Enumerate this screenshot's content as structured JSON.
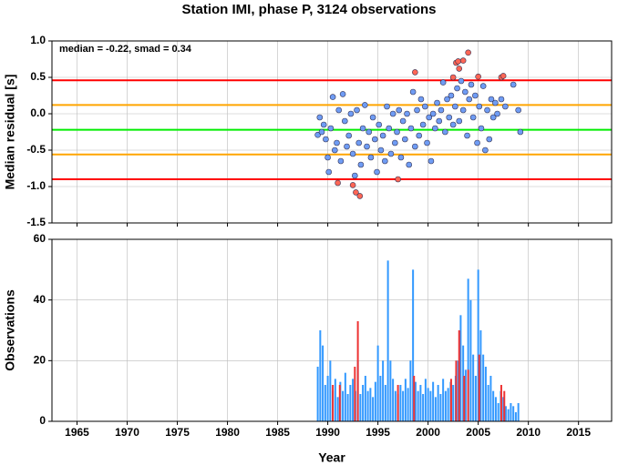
{
  "chart_data": [
    {
      "type": "scatter",
      "title": "Station IMI, phase P, 3124 observations",
      "annotation": "median = -0.22, smad = 0.34",
      "ylabel": "Median residual [s]",
      "xlim": [
        1962.5,
        2018.3
      ],
      "xticks": [
        1965,
        1970,
        1975,
        1980,
        1985,
        1990,
        1995,
        2000,
        2005,
        2010,
        2015
      ],
      "ylim": [
        -1.5,
        1.0
      ],
      "yticks": [
        {
          "value": 1.0,
          "label": "1.0"
        },
        0.5,
        {
          "value": 0.0,
          "label": "0.0"
        },
        -0.5,
        {
          "value": -1.0,
          "label": "-1.0"
        },
        -1.5
      ],
      "grid": true,
      "hlines": [
        {
          "value": 0.46,
          "color": "#ff0000"
        },
        {
          "value": 0.12,
          "color": "#ffa500"
        },
        {
          "value": -0.22,
          "color": "#00ee00"
        },
        {
          "value": -0.56,
          "color": "#ffa500"
        },
        {
          "value": -0.9,
          "color": "#ff0000"
        }
      ],
      "series": [
        {
          "color": "#6f9cf4",
          "x": [
            1989.0,
            1989.2,
            1989.4,
            1989.6,
            1989.8,
            1990.0,
            1990.1,
            1990.3,
            1990.5,
            1990.7,
            1990.9,
            1991.1,
            1991.3,
            1991.5,
            1991.7,
            1991.9,
            1992.1,
            1992.3,
            1992.5,
            1992.7,
            1992.9,
            1993.1,
            1993.3,
            1993.5,
            1993.7,
            1993.9,
            1994.1,
            1994.3,
            1994.5,
            1994.7,
            1994.9,
            1995.1,
            1995.3,
            1995.5,
            1995.7,
            1995.9,
            1996.1,
            1996.3,
            1996.5,
            1996.7,
            1996.9,
            1997.1,
            1997.3,
            1997.5,
            1997.7,
            1997.9,
            1998.1,
            1998.3,
            1998.5,
            1998.7,
            1998.9,
            1999.1,
            1999.3,
            1999.5,
            1999.7,
            1999.9,
            2000.1,
            2000.3,
            2000.5,
            2000.7,
            2000.9,
            2001.1,
            2001.3,
            2001.5,
            2001.7,
            2001.9,
            2002.1,
            2002.3,
            2002.5,
            2002.7,
            2002.9,
            2003.1,
            2003.3,
            2003.5,
            2003.7,
            2003.9,
            2004.1,
            2004.3,
            2004.5,
            2004.7,
            2004.9,
            2005.1,
            2005.3,
            2005.5,
            2005.7,
            2005.9,
            2006.1,
            2006.3,
            2006.5,
            2006.7,
            2006.9,
            2007.3,
            2007.7,
            2008.5,
            2009.0,
            2009.2
          ],
          "values": [
            -0.29,
            -0.05,
            -0.25,
            -0.15,
            -0.35,
            -0.6,
            -0.8,
            -0.2,
            0.23,
            -0.5,
            -0.4,
            0.05,
            -0.65,
            0.27,
            -0.1,
            -0.45,
            -0.3,
            0.0,
            -0.55,
            -0.85,
            0.05,
            -0.4,
            -0.7,
            -0.2,
            0.12,
            -0.45,
            -0.25,
            -0.6,
            -0.05,
            -0.35,
            -0.8,
            -0.15,
            -0.5,
            -0.3,
            -0.65,
            0.1,
            -0.2,
            -0.55,
            0.0,
            -0.4,
            -0.25,
            0.05,
            -0.6,
            -0.1,
            -0.35,
            0.0,
            -0.7,
            -0.2,
            0.3,
            -0.45,
            0.05,
            -0.3,
            0.2,
            -0.15,
            0.1,
            -0.4,
            -0.05,
            -0.65,
            0.0,
            -0.2,
            0.15,
            -0.1,
            0.05,
            0.43,
            -0.25,
            0.2,
            -0.05,
            0.25,
            -0.15,
            0.1,
            0.35,
            -0.1,
            0.45,
            0.05,
            0.3,
            -0.3,
            0.2,
            0.4,
            -0.05,
            0.25,
            -0.4,
            0.1,
            -0.2,
            0.38,
            -0.5,
            0.05,
            -0.35,
            0.2,
            -0.05,
            0.15,
            0.0,
            0.2,
            0.1,
            0.4,
            0.05,
            -0.25
          ]
        },
        {
          "color": "#ff6655",
          "x": [
            1991.0,
            1992.5,
            1992.8,
            1993.2,
            1997.0,
            1998.7,
            2002.5,
            2002.8,
            2003.0,
            2003.1,
            2003.5,
            2004.0,
            2005.0,
            2007.3,
            2007.5
          ],
          "values": [
            -0.95,
            -0.98,
            -1.08,
            -1.13,
            -0.9,
            0.57,
            0.5,
            0.7,
            0.72,
            0.62,
            0.73,
            0.84,
            0.51,
            0.5,
            0.52
          ]
        }
      ]
    },
    {
      "type": "bar",
      "xlabel": "Year",
      "ylabel": "Observations",
      "xlim": [
        1962.5,
        2018.3
      ],
      "xticks": [
        1965,
        1970,
        1975,
        1980,
        1985,
        1990,
        1995,
        2000,
        2005,
        2010,
        2015
      ],
      "ylim": [
        0,
        60
      ],
      "yticks": [
        0,
        20,
        40,
        60
      ],
      "grid": true,
      "series": [
        {
          "color": "#3399ff",
          "x": [
            1989.0,
            1989.25,
            1989.5,
            1989.75,
            1990.0,
            1990.25,
            1990.5,
            1990.75,
            1991.0,
            1991.25,
            1991.5,
            1991.75,
            1992.0,
            1992.25,
            1992.5,
            1992.75,
            1993.0,
            1993.25,
            1993.5,
            1993.75,
            1994.0,
            1994.25,
            1994.5,
            1994.75,
            1995.0,
            1995.25,
            1995.5,
            1995.75,
            1996.0,
            1996.25,
            1996.5,
            1996.75,
            1997.0,
            1997.25,
            1997.5,
            1997.75,
            1998.0,
            1998.25,
            1998.5,
            1998.75,
            1999.0,
            1999.25,
            1999.5,
            1999.75,
            2000.0,
            2000.25,
            2000.5,
            2000.75,
            2001.0,
            2001.25,
            2001.5,
            2001.75,
            2002.0,
            2002.25,
            2002.5,
            2002.75,
            2003.0,
            2003.25,
            2003.5,
            2003.75,
            2004.0,
            2004.25,
            2004.5,
            2004.75,
            2005.0,
            2005.25,
            2005.5,
            2005.75,
            2006.0,
            2006.25,
            2006.5,
            2006.75,
            2007.0,
            2007.25,
            2007.5,
            2007.75,
            2008.0,
            2008.25,
            2008.5,
            2008.75,
            2009.0
          ],
          "values": [
            18,
            30,
            25,
            12,
            15,
            20,
            10,
            14,
            8,
            13,
            10,
            16,
            9,
            12,
            14,
            10,
            20,
            9,
            12,
            15,
            10,
            11,
            8,
            13,
            25,
            15,
            20,
            12,
            53,
            20,
            14,
            10,
            9,
            12,
            10,
            14,
            11,
            20,
            50,
            13,
            10,
            12,
            9,
            14,
            11,
            10,
            13,
            8,
            12,
            9,
            14,
            10,
            11,
            13,
            12,
            15,
            20,
            35,
            25,
            17,
            47,
            40,
            22,
            15,
            50,
            30,
            22,
            18,
            12,
            15,
            10,
            8,
            6,
            10,
            8,
            5,
            4,
            6,
            5,
            3,
            6
          ]
        },
        {
          "color": "#ee3333",
          "x": [
            1990.5,
            1991.2,
            1992.7,
            1993.0,
            1997.0,
            1998.6,
            2002.3,
            2002.8,
            2003.1,
            2003.6,
            2004.0,
            2005.1,
            2007.3,
            2007.6
          ],
          "values": [
            12,
            12,
            18,
            33,
            12,
            15,
            14,
            20,
            30,
            15,
            17,
            22,
            12,
            10
          ]
        }
      ]
    }
  ]
}
